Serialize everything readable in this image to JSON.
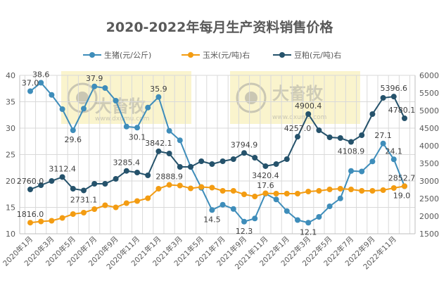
{
  "chart_data": {
    "type": "line",
    "title": "2020-2022年每月生产资料销售价格",
    "legend_position": "top",
    "grid": true,
    "x": [
      "2020年1月",
      "2020年2月",
      "2020年3月",
      "2020年4月",
      "2020年5月",
      "2020年6月",
      "2020年7月",
      "2020年8月",
      "2020年9月",
      "2020年10月",
      "2020年11月",
      "2020年12月",
      "2021年1月",
      "2021年2月",
      "2021年3月",
      "2021年4月",
      "2021年5月",
      "2021年6月",
      "2021年7月",
      "2021年8月",
      "2021年9月",
      "2021年10月",
      "2021年11月",
      "2021年12月",
      "2022年1月",
      "2022年2月",
      "2022年3月",
      "2022年4月",
      "2022年5月",
      "2022年6月",
      "2022年7月",
      "2022年8月",
      "2022年9月",
      "2022年10月",
      "2022年11月",
      "2022年12月"
    ],
    "xtick_labels": [
      "2020年1月",
      "2020年3月",
      "2020年5月",
      "2020年7月",
      "2020年9月",
      "2020年11月",
      "2021年1月",
      "2021年3月",
      "2021年5月",
      "2021年7月",
      "2021年9月",
      "2021年11月",
      "2022年1月",
      "2022年3月",
      "2022年5月",
      "2022年7月",
      "2022年9月",
      "2022年11月"
    ],
    "y_left": {
      "lim": [
        10,
        40
      ],
      "ticks": [
        "10",
        "15",
        "20",
        "25",
        "30",
        "35",
        "40"
      ]
    },
    "y_right": {
      "lim": [
        1500,
        6000
      ],
      "ticks": [
        "1500",
        "2000",
        "2500",
        "3000",
        "3500",
        "4000",
        "4500",
        "5000",
        "5500",
        "6000"
      ]
    },
    "series": [
      {
        "name": "生猪(元/公斤)",
        "axis": "left",
        "color": "#3e8dba",
        "values": [
          37.0,
          38.6,
          36.3,
          33.6,
          29.6,
          33.7,
          37.9,
          37.6,
          35.2,
          30.3,
          30.1,
          33.9,
          35.9,
          29.5,
          27.7,
          22.7,
          18.7,
          14.5,
          15.5,
          14.7,
          12.3,
          12.9,
          17.6,
          16.5,
          14.3,
          12.6,
          12.1,
          13.2,
          15.2,
          16.7,
          21.9,
          21.8,
          23.7,
          27.1,
          24.1,
          19.0
        ],
        "labels": {
          "0": "37.0",
          "1": "38.6",
          "4": "29.6",
          "6": "37.9",
          "10": "30.1",
          "12": "35.9",
          "17": "14.5",
          "20": "12.3",
          "22": "17.6",
          "26": "12.1",
          "33": "27.1",
          "34": "24.1",
          "35": "19.0"
        }
      },
      {
        "name": "玉米(元/吨)右",
        "axis": "right",
        "color": "#f39c12",
        "values": [
          1816.0,
          1850,
          1870,
          1950,
          2060,
          2100,
          2200,
          2310,
          2250,
          2370,
          2430,
          2510,
          2780,
          2888.9,
          2870,
          2790,
          2830,
          2810,
          2720,
          2720,
          2620,
          2560,
          2650,
          2640,
          2640,
          2640,
          2700,
          2720,
          2760,
          2780,
          2760,
          2720,
          2720,
          2740,
          2800,
          2852.7
        ],
        "labels": {
          "0": "1816.0",
          "13": "2888.9",
          "35": "2852.7"
        }
      },
      {
        "name": "豆粕(元/吨)右",
        "axis": "right",
        "color": "#25526b",
        "values": [
          2760.0,
          2880,
          3000,
          3112.4,
          2780,
          2731.1,
          2920,
          2920,
          3060,
          3285.4,
          3240,
          3160,
          3842.1,
          3780,
          3400,
          3400,
          3560,
          3480,
          3560,
          3620,
          3794.9,
          3660,
          3420.4,
          3480,
          3620,
          4257.0,
          4900.4,
          4440,
          4240,
          4220,
          4108.9,
          4300,
          4900,
          5360,
          5396.6,
          4780.1
        ],
        "labels": {
          "0": "2760.0",
          "3": "3112.4",
          "5": "2731.1",
          "9": "3285.4",
          "12": "3842.1",
          "20": "3794.9",
          "22": "3420.4",
          "25": "4257.0",
          "26": "4900.4",
          "30": "4108.9",
          "34": "5396.6",
          "35": "4780.1"
        }
      }
    ]
  },
  "watermark": {
    "brand": "大畜牧",
    "url": "www.dxumu.com"
  }
}
